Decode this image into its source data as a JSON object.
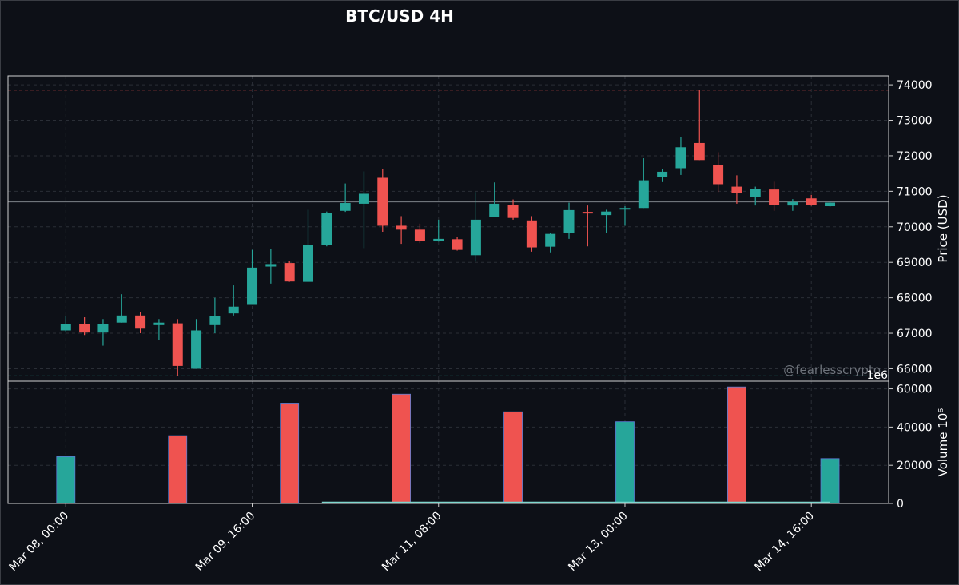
{
  "chart_data": {
    "type": "candlestick",
    "title": "BTC/USD 4H",
    "watermark": "@fearlesscrypto",
    "colors": {
      "up": "#26a69a",
      "down": "#ef5350",
      "background": "#0d1017",
      "grid": "#2a2e36",
      "text": "#ffffff"
    },
    "price_panel": {
      "ylabel": "Price (USD)",
      "offset_label": "1e6",
      "ylim": [
        65650,
        74250
      ],
      "yticks": [
        66000,
        67000,
        68000,
        69000,
        70000,
        71000,
        72000,
        73000,
        74000
      ],
      "reference_lines": [
        {
          "value": 73850,
          "color": "#ef5350",
          "style": "dashed"
        },
        {
          "value": 70700,
          "color": "#9aa0a6",
          "style": "solid"
        },
        {
          "value": 65800,
          "color": "#26a69a",
          "style": "dashed"
        }
      ],
      "candles": [
        {
          "t": 0,
          "o": 67080,
          "h": 67480,
          "l": 67050,
          "c": 67250
        },
        {
          "t": 1,
          "o": 67250,
          "h": 67450,
          "l": 66950,
          "c": 67020
        },
        {
          "t": 2,
          "o": 67020,
          "h": 67400,
          "l": 66650,
          "c": 67250
        },
        {
          "t": 3,
          "o": 67300,
          "h": 68100,
          "l": 67300,
          "c": 67500
        },
        {
          "t": 4,
          "o": 67500,
          "h": 67600,
          "l": 67000,
          "c": 67130
        },
        {
          "t": 5,
          "o": 67230,
          "h": 67400,
          "l": 66800,
          "c": 67300
        },
        {
          "t": 6,
          "o": 67280,
          "h": 67400,
          "l": 65800,
          "c": 66080
        },
        {
          "t": 7,
          "o": 66000,
          "h": 67400,
          "l": 66000,
          "c": 67080
        },
        {
          "t": 8,
          "o": 67230,
          "h": 68000,
          "l": 67000,
          "c": 67480
        },
        {
          "t": 9,
          "o": 67560,
          "h": 68350,
          "l": 67500,
          "c": 67750
        },
        {
          "t": 10,
          "o": 67800,
          "h": 69350,
          "l": 67800,
          "c": 68850
        },
        {
          "t": 11,
          "o": 68880,
          "h": 69380,
          "l": 68400,
          "c": 68950
        },
        {
          "t": 12,
          "o": 68980,
          "h": 69030,
          "l": 68450,
          "c": 68460
        },
        {
          "t": 13,
          "o": 68450,
          "h": 70480,
          "l": 68450,
          "c": 69480
        },
        {
          "t": 14,
          "o": 69480,
          "h": 70430,
          "l": 69450,
          "c": 70380
        },
        {
          "t": 15,
          "o": 70450,
          "h": 71220,
          "l": 70420,
          "c": 70670
        },
        {
          "t": 16,
          "o": 70650,
          "h": 71560,
          "l": 69400,
          "c": 70930
        },
        {
          "t": 17,
          "o": 71380,
          "h": 71620,
          "l": 69860,
          "c": 70030
        },
        {
          "t": 18,
          "o": 70030,
          "h": 70300,
          "l": 69520,
          "c": 69920
        },
        {
          "t": 19,
          "o": 69920,
          "h": 70090,
          "l": 69540,
          "c": 69600
        },
        {
          "t": 20,
          "o": 69600,
          "h": 70200,
          "l": 69580,
          "c": 69660
        },
        {
          "t": 21,
          "o": 69650,
          "h": 69720,
          "l": 69330,
          "c": 69350
        },
        {
          "t": 22,
          "o": 69200,
          "h": 70980,
          "l": 69020,
          "c": 70200
        },
        {
          "t": 23,
          "o": 70270,
          "h": 71250,
          "l": 70270,
          "c": 70650
        },
        {
          "t": 24,
          "o": 70610,
          "h": 70770,
          "l": 70200,
          "c": 70250
        },
        {
          "t": 25,
          "o": 70180,
          "h": 70300,
          "l": 69300,
          "c": 69420
        },
        {
          "t": 26,
          "o": 69440,
          "h": 69820,
          "l": 69280,
          "c": 69800
        },
        {
          "t": 27,
          "o": 69830,
          "h": 70680,
          "l": 69660,
          "c": 70470
        },
        {
          "t": 28,
          "o": 70420,
          "h": 70600,
          "l": 69450,
          "c": 70380
        },
        {
          "t": 29,
          "o": 70330,
          "h": 70480,
          "l": 69830,
          "c": 70430
        },
        {
          "t": 30,
          "o": 70500,
          "h": 70580,
          "l": 70030,
          "c": 70530
        },
        {
          "t": 31,
          "o": 70530,
          "h": 71930,
          "l": 70530,
          "c": 71310
        },
        {
          "t": 32,
          "o": 71400,
          "h": 71620,
          "l": 71260,
          "c": 71550
        },
        {
          "t": 33,
          "o": 71650,
          "h": 72520,
          "l": 71460,
          "c": 72240
        },
        {
          "t": 34,
          "o": 72360,
          "h": 73850,
          "l": 71880,
          "c": 71880
        },
        {
          "t": 35,
          "o": 71730,
          "h": 72100,
          "l": 70980,
          "c": 71200
        },
        {
          "t": 36,
          "o": 71130,
          "h": 71450,
          "l": 70650,
          "c": 70950
        },
        {
          "t": 37,
          "o": 70830,
          "h": 71130,
          "l": 70600,
          "c": 71060
        },
        {
          "t": 38,
          "o": 71050,
          "h": 71270,
          "l": 70450,
          "c": 70620
        },
        {
          "t": 39,
          "o": 70600,
          "h": 70780,
          "l": 70450,
          "c": 70700
        },
        {
          "t": 40,
          "o": 70800,
          "h": 70900,
          "l": 70590,
          "c": 70620
        },
        {
          "t": 41,
          "o": 70580,
          "h": 70720,
          "l": 70560,
          "c": 70680
        }
      ]
    },
    "volume_panel": {
      "ylabel": "Volume  10⁶",
      "ylim": [
        0,
        64000
      ],
      "yticks": [
        0,
        20000,
        40000,
        60000
      ],
      "bars": [
        {
          "t": 0,
          "value": 24500,
          "dir": "up"
        },
        {
          "t": 6,
          "value": 35500,
          "dir": "down"
        },
        {
          "t": 12,
          "value": 52500,
          "dir": "down"
        },
        {
          "t": 18,
          "value": 57200,
          "dir": "down"
        },
        {
          "t": 24,
          "value": 48000,
          "dir": "down"
        },
        {
          "t": 30,
          "value": 42800,
          "dir": "up"
        },
        {
          "t": 36,
          "value": 61000,
          "dir": "down"
        },
        {
          "t": 41,
          "value": 23500,
          "dir": "up"
        }
      ],
      "baseline_line": {
        "t_start": 14,
        "t_end": 41,
        "value": 500
      }
    },
    "xticks": [
      {
        "t": 0,
        "label": "Mar 08, 00:00"
      },
      {
        "t": 10,
        "label": "Mar 09, 16:00"
      },
      {
        "t": 20,
        "label": "Mar 11, 08:00"
      },
      {
        "t": 30,
        "label": "Mar 13, 00:00"
      },
      {
        "t": 40,
        "label": "Mar 14, 16:00"
      }
    ],
    "xlim": [
      -3.1,
      44.15
    ]
  }
}
